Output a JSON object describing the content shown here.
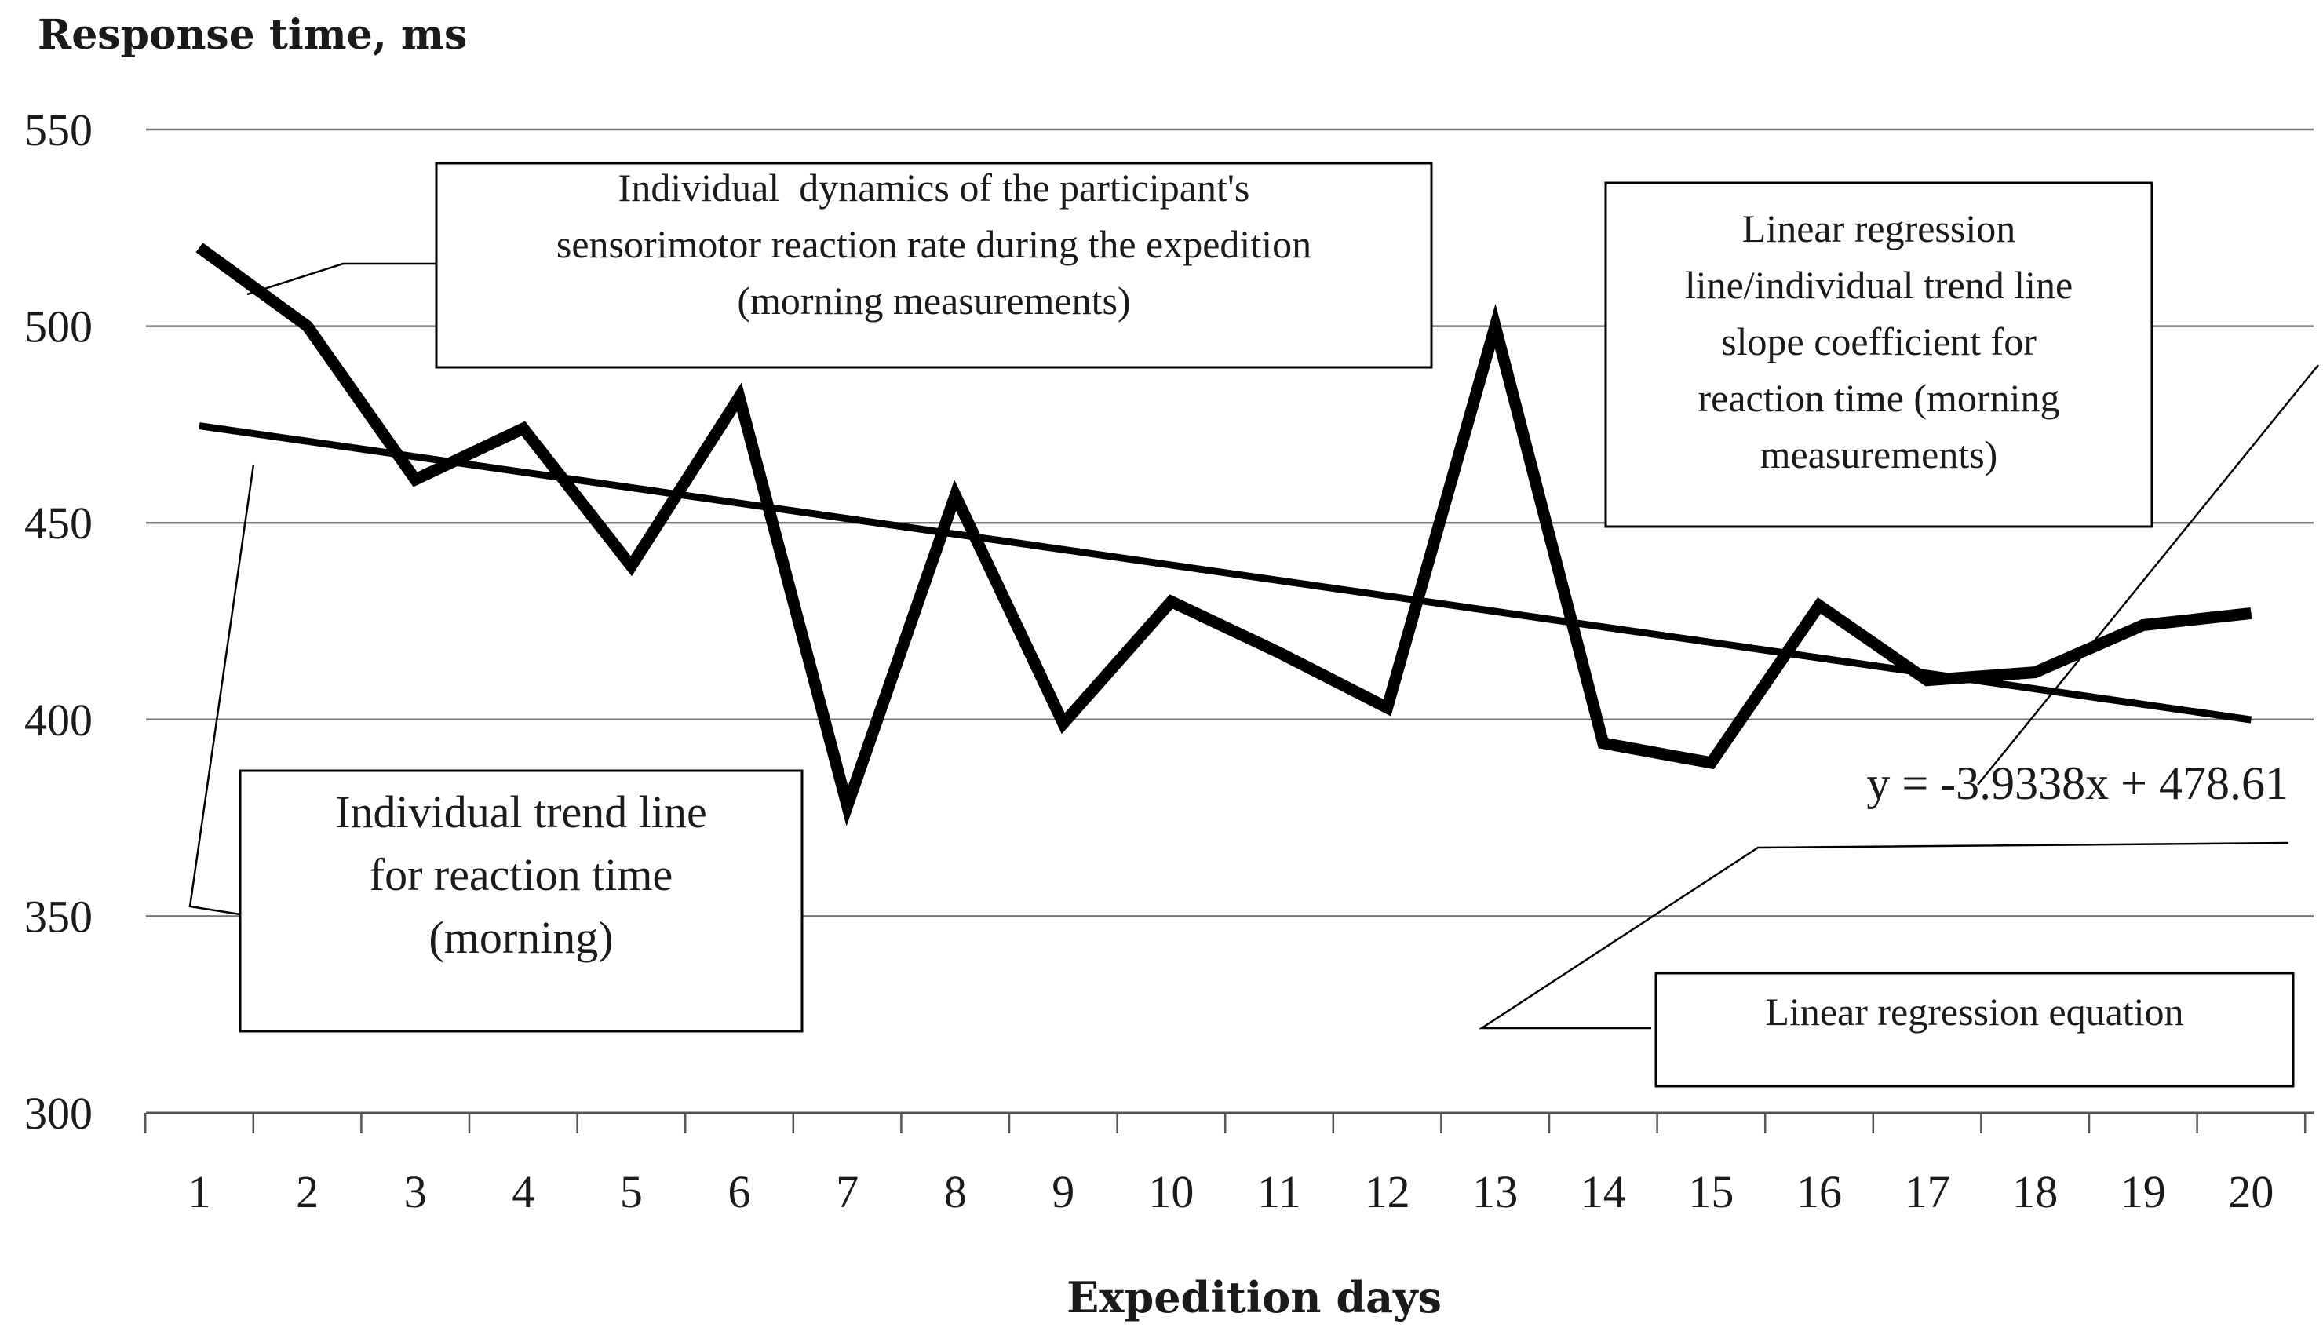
{
  "chart_data": {
    "type": "line",
    "ylabel": "Response time, ms",
    "xlabel": "Expedition days",
    "ylim": [
      300,
      550
    ],
    "yticks": [
      300,
      350,
      400,
      450,
      500,
      550
    ],
    "grid": true,
    "categories": [
      "1",
      "2",
      "3",
      "4",
      "5",
      "6",
      "7",
      "8",
      "9",
      "10",
      "11",
      "12",
      "13",
      "14",
      "15",
      "16",
      "17",
      "18",
      "19",
      "20"
    ],
    "series": [
      {
        "name": "Individual dynamics of the participant's sensorimotor reaction rate during the expedition (morning measurements)",
        "values": [
          520,
          500,
          461,
          474,
          439,
          482,
          378,
          457,
          399,
          430,
          417,
          403,
          500,
          394,
          389,
          429,
          410,
          412,
          424,
          427
        ]
      },
      {
        "name": "Individual trend line for reaction time (morning)",
        "type": "trend",
        "slope": -3.9338,
        "intercept": 478.61
      }
    ],
    "annotations": {
      "dynamics": [
        "Individual  dynamics of the participant's",
        "sensorimotor reaction rate during the expedition",
        "(morning measurements)"
      ],
      "trend": [
        "Individual trend line",
        "for reaction time",
        "(morning)"
      ],
      "slope": [
        "Linear regression",
        "line/individual trend line",
        "slope coefficient for",
        "reaction time (morning",
        "measurements)"
      ],
      "equation_label": "Linear regression equation",
      "equation": "y = -3.9338x + 478.61"
    }
  }
}
